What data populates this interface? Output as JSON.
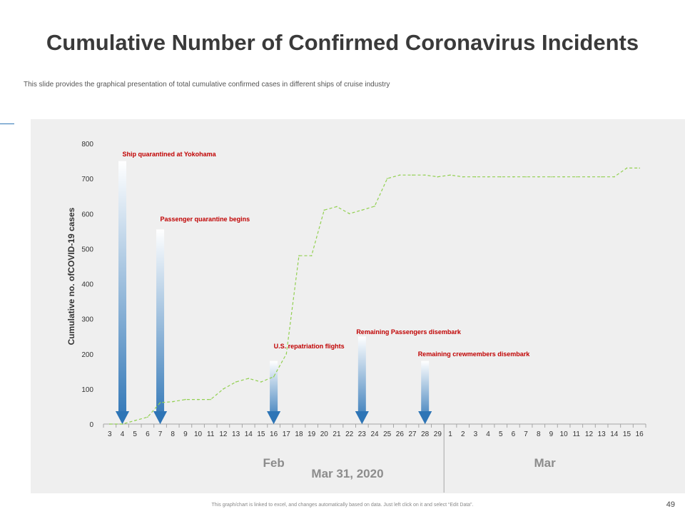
{
  "slide": {
    "title": "Cumulative Number of Confirmed Coronavirus Incidents",
    "subtitle": "This slide provides the graphical presentation of total cumulative confirmed cases in different ships of cruise industry",
    "footer_note": "This graph/chart is linked to excel, and changes automatically based on data. Just left click on it and select “Edit Data”.",
    "page_number": "49"
  },
  "chart_data": {
    "type": "line",
    "title": "",
    "xlabel": "Mar 31, 2020",
    "ylabel": "Cumulative no. ofCOVID-19 cases",
    "ylim": [
      0,
      800
    ],
    "yticks": [
      0,
      100,
      200,
      300,
      400,
      500,
      600,
      700,
      800
    ],
    "categories": [
      "3",
      "4",
      "5",
      "6",
      "7",
      "8",
      "9",
      "10",
      "11",
      "12",
      "13",
      "14",
      "15",
      "16",
      "17",
      "18",
      "19",
      "20",
      "21",
      "22",
      "23",
      "24",
      "25",
      "26",
      "27",
      "28",
      "29",
      "1",
      "2",
      "3",
      "4",
      "5",
      "6",
      "7",
      "8",
      "9",
      "10",
      "11",
      "12",
      "13",
      "14",
      "15",
      "16"
    ],
    "month_groups": [
      {
        "label": "Feb",
        "from": 0,
        "to": 26
      },
      {
        "label": "Mar",
        "from": 27,
        "to": 42
      }
    ],
    "series": [
      {
        "values": [
          0,
          0,
          10,
          20,
          61,
          64,
          70,
          70,
          70,
          100,
          120,
          130,
          120,
          135,
          200,
          480,
          480,
          610,
          620,
          600,
          610,
          621,
          700,
          710,
          710,
          710,
          705,
          710,
          705,
          705,
          705,
          705,
          705,
          705,
          705,
          705,
          705,
          705,
          705,
          705,
          705,
          730,
          730
        ],
        "color": "#92d050",
        "style": "dashed"
      }
    ],
    "annotations": [
      {
        "label": "Ship quarantined at Yokohama",
        "x_index": 1,
        "arrow_top": 750
      },
      {
        "label": "Passenger quarantine begins",
        "x_index": 4,
        "arrow_top": 555
      },
      {
        "label": "U.S. repatriation flights",
        "x_index": 13,
        "arrow_top": 180
      },
      {
        "label": "Remaining Passengers disembark",
        "x_index": 20,
        "arrow_top": 250
      },
      {
        "label": "Remaining crewmembers disembark",
        "x_index": 25,
        "arrow_top": 180
      }
    ],
    "colors": {
      "arrow": "#2e75b6",
      "annotation_text": "#c00000"
    },
    "grid": false,
    "legend": "none"
  }
}
